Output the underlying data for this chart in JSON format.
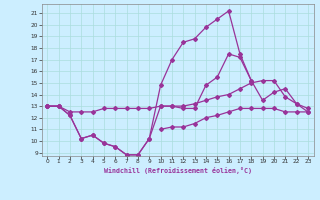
{
  "xlabel": "Windchill (Refroidissement éolien,°C)",
  "bg_color": "#cceeff",
  "line_color": "#993399",
  "grid_color": "#aadddd",
  "xlim": [
    -0.5,
    23.5
  ],
  "ylim": [
    8.7,
    21.8
  ],
  "xticks": [
    0,
    1,
    2,
    3,
    4,
    5,
    6,
    7,
    8,
    9,
    10,
    11,
    12,
    13,
    14,
    15,
    16,
    17,
    18,
    19,
    20,
    21,
    22,
    23
  ],
  "yticks": [
    9,
    10,
    11,
    12,
    13,
    14,
    15,
    16,
    17,
    18,
    19,
    20,
    21
  ],
  "hours": [
    0,
    1,
    2,
    3,
    4,
    5,
    6,
    7,
    8,
    9,
    10,
    11,
    12,
    13,
    14,
    15,
    16,
    17,
    18,
    19,
    20,
    21,
    22,
    23
  ],
  "line_temp": [
    13.0,
    13.0,
    12.2,
    10.2,
    10.5,
    9.8,
    9.5,
    8.8,
    8.8,
    10.2,
    14.8,
    17.0,
    18.5,
    18.8,
    19.8,
    20.5,
    21.2,
    17.5,
    15.2,
    null,
    null,
    null,
    null,
    null
  ],
  "line_wc": [
    13.0,
    13.0,
    12.2,
    10.2,
    10.5,
    9.8,
    9.5,
    8.8,
    8.8,
    10.2,
    13.0,
    13.0,
    12.8,
    12.8,
    14.8,
    15.5,
    17.5,
    17.2,
    15.2,
    13.5,
    14.2,
    14.5,
    13.2,
    12.5
  ],
  "line_max": [
    13.0,
    13.0,
    12.5,
    12.5,
    12.5,
    12.8,
    12.8,
    12.8,
    12.8,
    12.8,
    13.0,
    13.0,
    13.0,
    13.2,
    13.5,
    13.8,
    14.0,
    14.5,
    15.0,
    15.2,
    15.2,
    13.8,
    13.2,
    12.8
  ],
  "line_min": [
    13.0,
    null,
    null,
    null,
    null,
    null,
    null,
    null,
    null,
    null,
    11.0,
    11.2,
    11.2,
    11.5,
    12.0,
    12.2,
    12.5,
    12.8,
    12.8,
    12.8,
    12.8,
    12.5,
    12.5,
    12.5
  ]
}
